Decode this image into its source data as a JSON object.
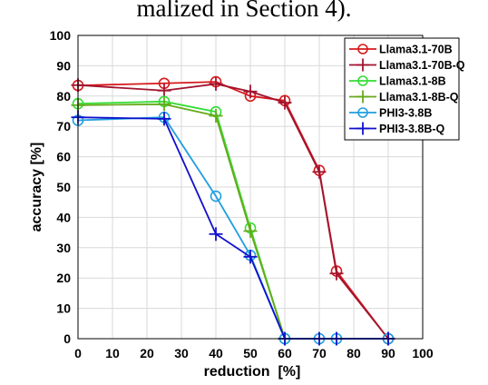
{
  "caption": "malized in Section 4).",
  "chart_data": {
    "type": "line",
    "xlabel": "reduction  [%]",
    "ylabel": "accuracy [%]",
    "xlim": [
      0,
      100
    ],
    "ylim": [
      0,
      100
    ],
    "xticks": [
      0,
      10,
      20,
      30,
      40,
      50,
      60,
      70,
      80,
      90,
      100
    ],
    "yticks": [
      0,
      10,
      20,
      30,
      40,
      50,
      60,
      70,
      80,
      90,
      100
    ],
    "grid": true,
    "legend_position": "top-right",
    "series": [
      {
        "name": "Llama3.1-70B",
        "color": "#d7191c",
        "marker": "circle",
        "x": [
          0,
          25,
          40,
          50,
          60,
          70,
          75,
          90
        ],
        "y": [
          83.5,
          84.2,
          84.7,
          80.0,
          78.5,
          55.5,
          22.3,
          0.0
        ]
      },
      {
        "name": "Llama3.1-70B-Q",
        "color": "#a2142f",
        "marker": "plus",
        "x": [
          0,
          25,
          40,
          50,
          60,
          70,
          75,
          90
        ],
        "y": [
          83.6,
          81.8,
          84.0,
          81.5,
          77.8,
          55.0,
          21.5,
          0.0
        ]
      },
      {
        "name": "Llama3.1-8B",
        "color": "#33dd33",
        "marker": "circle",
        "x": [
          0,
          25,
          40,
          50,
          60
        ],
        "y": [
          77.5,
          78.2,
          74.8,
          36.5,
          0.0
        ]
      },
      {
        "name": "Llama3.1-8B-Q",
        "color": "#66aa1a",
        "marker": "plus",
        "x": [
          0,
          25,
          40,
          50,
          60
        ],
        "y": [
          77.0,
          77.3,
          73.5,
          35.5,
          0.0
        ]
      },
      {
        "name": "PHI3-3.8B",
        "color": "#1f9ee0",
        "marker": "circle",
        "x": [
          0,
          25,
          40,
          50,
          60,
          70,
          75,
          90
        ],
        "y": [
          72.0,
          73.0,
          47.0,
          27.5,
          0.0,
          0.0,
          0.0,
          0.0
        ]
      },
      {
        "name": "PHI3-3.8B-Q",
        "color": "#1010cc",
        "marker": "plus",
        "x": [
          0,
          25,
          40,
          50,
          60,
          70,
          75,
          90
        ],
        "y": [
          73.0,
          72.5,
          34.5,
          27.0,
          0.0,
          0.0,
          0.0,
          0.0
        ]
      }
    ]
  }
}
